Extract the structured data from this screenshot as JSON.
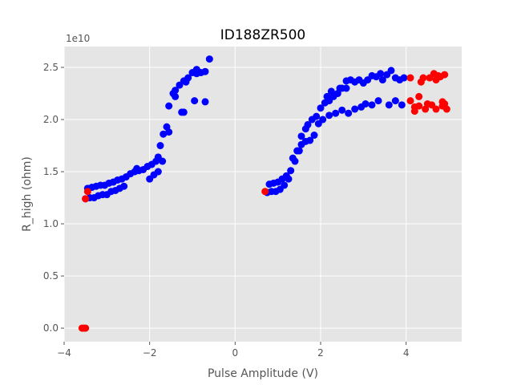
{
  "chart_data": {
    "type": "scatter",
    "title": "ID188ZR500",
    "xlabel": "Pulse Amplitude (V)",
    "ylabel": "R_high (ohm)",
    "y_offset_label": "1e10",
    "xlim": [
      -4.0,
      5.3
    ],
    "ylim": [
      -0.13,
      2.7
    ],
    "x_ticks": [
      -4,
      -2,
      0,
      2,
      4
    ],
    "x_tick_labels": [
      "−4",
      "−2",
      "0",
      "2",
      "4"
    ],
    "y_ticks": [
      0.0,
      0.5,
      1.0,
      1.5,
      2.0,
      2.5
    ],
    "y_tick_labels": [
      "0.0",
      "0.5",
      "1.0",
      "1.5",
      "2.0",
      "2.5"
    ],
    "grid": true,
    "style": "ggplot",
    "colors": {
      "panel": "#e5e5e5",
      "grid": "#ffffff",
      "series_blue": "#0000ff",
      "series_red": "#ff0000"
    },
    "series": [
      {
        "color": "#0000ff",
        "points": [
          [
            -3.5,
            1.24
          ],
          [
            -3.4,
            1.25
          ],
          [
            -3.3,
            1.25
          ],
          [
            -3.2,
            1.27
          ],
          [
            -3.1,
            1.28
          ],
          [
            -3.0,
            1.28
          ],
          [
            -2.9,
            1.31
          ],
          [
            -2.8,
            1.32
          ],
          [
            -2.7,
            1.34
          ],
          [
            -2.6,
            1.36
          ],
          [
            -3.45,
            1.34
          ],
          [
            -3.35,
            1.35
          ],
          [
            -3.25,
            1.36
          ],
          [
            -3.15,
            1.37
          ],
          [
            -3.05,
            1.37
          ],
          [
            -2.95,
            1.39
          ],
          [
            -2.85,
            1.4
          ],
          [
            -2.75,
            1.42
          ],
          [
            -2.65,
            1.43
          ],
          [
            -2.55,
            1.45
          ],
          [
            -2.45,
            1.48
          ],
          [
            -2.35,
            1.5
          ],
          [
            -2.25,
            1.51
          ],
          [
            -2.15,
            1.52
          ],
          [
            -2.05,
            1.55
          ],
          [
            -1.95,
            1.57
          ],
          [
            -1.85,
            1.6
          ],
          [
            -1.8,
            1.64
          ],
          [
            -1.75,
            1.75
          ],
          [
            -1.68,
            1.86
          ],
          [
            -1.6,
            1.93
          ],
          [
            -1.55,
            2.13
          ],
          [
            -1.45,
            2.25
          ],
          [
            -1.4,
            2.28
          ],
          [
            -1.3,
            2.33
          ],
          [
            -1.2,
            2.37
          ],
          [
            -1.1,
            2.4
          ],
          [
            -1.0,
            2.45
          ],
          [
            -0.9,
            2.48
          ],
          [
            -0.8,
            2.45
          ],
          [
            -0.7,
            2.46
          ],
          [
            -0.6,
            2.58
          ],
          [
            -2.3,
            1.53
          ],
          [
            -2.0,
            1.43
          ],
          [
            -1.9,
            1.47
          ],
          [
            -1.8,
            1.5
          ],
          [
            -1.7,
            1.6
          ],
          [
            -1.55,
            1.88
          ],
          [
            -1.4,
            2.22
          ],
          [
            -1.2,
            2.07
          ],
          [
            -1.25,
            2.07
          ],
          [
            -0.95,
            2.18
          ],
          [
            -0.7,
            2.17
          ],
          [
            -0.9,
            2.44
          ],
          [
            -1.15,
            2.36
          ]
        ]
      },
      {
        "color": "#0000ff",
        "points": [
          [
            0.75,
            1.3
          ],
          [
            0.85,
            1.31
          ],
          [
            0.95,
            1.31
          ],
          [
            1.05,
            1.33
          ],
          [
            1.15,
            1.37
          ],
          [
            1.25,
            1.43
          ],
          [
            1.3,
            1.51
          ],
          [
            1.4,
            1.6
          ],
          [
            1.5,
            1.7
          ],
          [
            1.55,
            1.76
          ],
          [
            1.65,
            1.79
          ],
          [
            1.75,
            1.8
          ],
          [
            1.85,
            1.85
          ],
          [
            1.95,
            1.96
          ],
          [
            2.05,
            2.0
          ],
          [
            2.2,
            2.04
          ],
          [
            2.35,
            2.06
          ],
          [
            2.5,
            2.09
          ],
          [
            2.65,
            2.06
          ],
          [
            2.8,
            2.1
          ],
          [
            2.95,
            2.12
          ],
          [
            3.05,
            2.15
          ],
          [
            3.2,
            2.14
          ],
          [
            3.35,
            2.18
          ],
          [
            3.6,
            2.14
          ],
          [
            3.75,
            2.18
          ],
          [
            3.9,
            2.14
          ],
          [
            0.8,
            1.38
          ],
          [
            0.9,
            1.39
          ],
          [
            1.0,
            1.4
          ],
          [
            1.1,
            1.43
          ],
          [
            1.2,
            1.46
          ],
          [
            1.35,
            1.63
          ],
          [
            1.45,
            1.7
          ],
          [
            1.55,
            1.84
          ],
          [
            1.65,
            1.91
          ],
          [
            1.7,
            1.95
          ],
          [
            1.8,
            2.0
          ],
          [
            1.9,
            2.03
          ],
          [
            2.0,
            2.11
          ],
          [
            2.1,
            2.16
          ],
          [
            2.2,
            2.18
          ],
          [
            2.3,
            2.22
          ],
          [
            2.4,
            2.25
          ],
          [
            2.5,
            2.3
          ],
          [
            2.6,
            2.37
          ],
          [
            2.7,
            2.38
          ],
          [
            2.8,
            2.36
          ],
          [
            2.9,
            2.38
          ],
          [
            3.1,
            2.38
          ],
          [
            3.3,
            2.41
          ],
          [
            3.45,
            2.38
          ],
          [
            3.55,
            2.43
          ],
          [
            3.65,
            2.47
          ],
          [
            3.75,
            2.4
          ],
          [
            3.85,
            2.38
          ],
          [
            3.95,
            2.4
          ],
          [
            3.4,
            2.44
          ],
          [
            3.2,
            2.42
          ],
          [
            2.15,
            2.22
          ],
          [
            2.25,
            2.27
          ],
          [
            2.45,
            2.3
          ],
          [
            2.6,
            2.3
          ],
          [
            3.0,
            2.35
          ]
        ]
      },
      {
        "color": "#ff0000",
        "points": [
          [
            -3.58,
            0.0
          ],
          [
            -3.54,
            0.0
          ],
          [
            -3.5,
            0.0
          ],
          [
            -3.45,
            1.31
          ],
          [
            -3.5,
            1.24
          ],
          [
            0.7,
            1.31
          ],
          [
            4.1,
            2.4
          ],
          [
            4.2,
            2.12
          ],
          [
            4.1,
            2.18
          ],
          [
            4.2,
            2.08
          ],
          [
            4.3,
            2.13
          ],
          [
            4.3,
            2.22
          ],
          [
            4.35,
            2.36
          ],
          [
            4.4,
            2.4
          ],
          [
            4.45,
            2.1
          ],
          [
            4.5,
            2.15
          ],
          [
            4.55,
            2.4
          ],
          [
            4.6,
            2.14
          ],
          [
            4.65,
            2.44
          ],
          [
            4.7,
            2.38
          ],
          [
            4.7,
            2.1
          ],
          [
            4.75,
            2.42
          ],
          [
            4.8,
            2.41
          ],
          [
            4.85,
            2.17
          ],
          [
            4.85,
            2.13
          ],
          [
            4.9,
            2.15
          ],
          [
            4.9,
            2.43
          ],
          [
            4.95,
            2.1
          ]
        ]
      }
    ]
  }
}
